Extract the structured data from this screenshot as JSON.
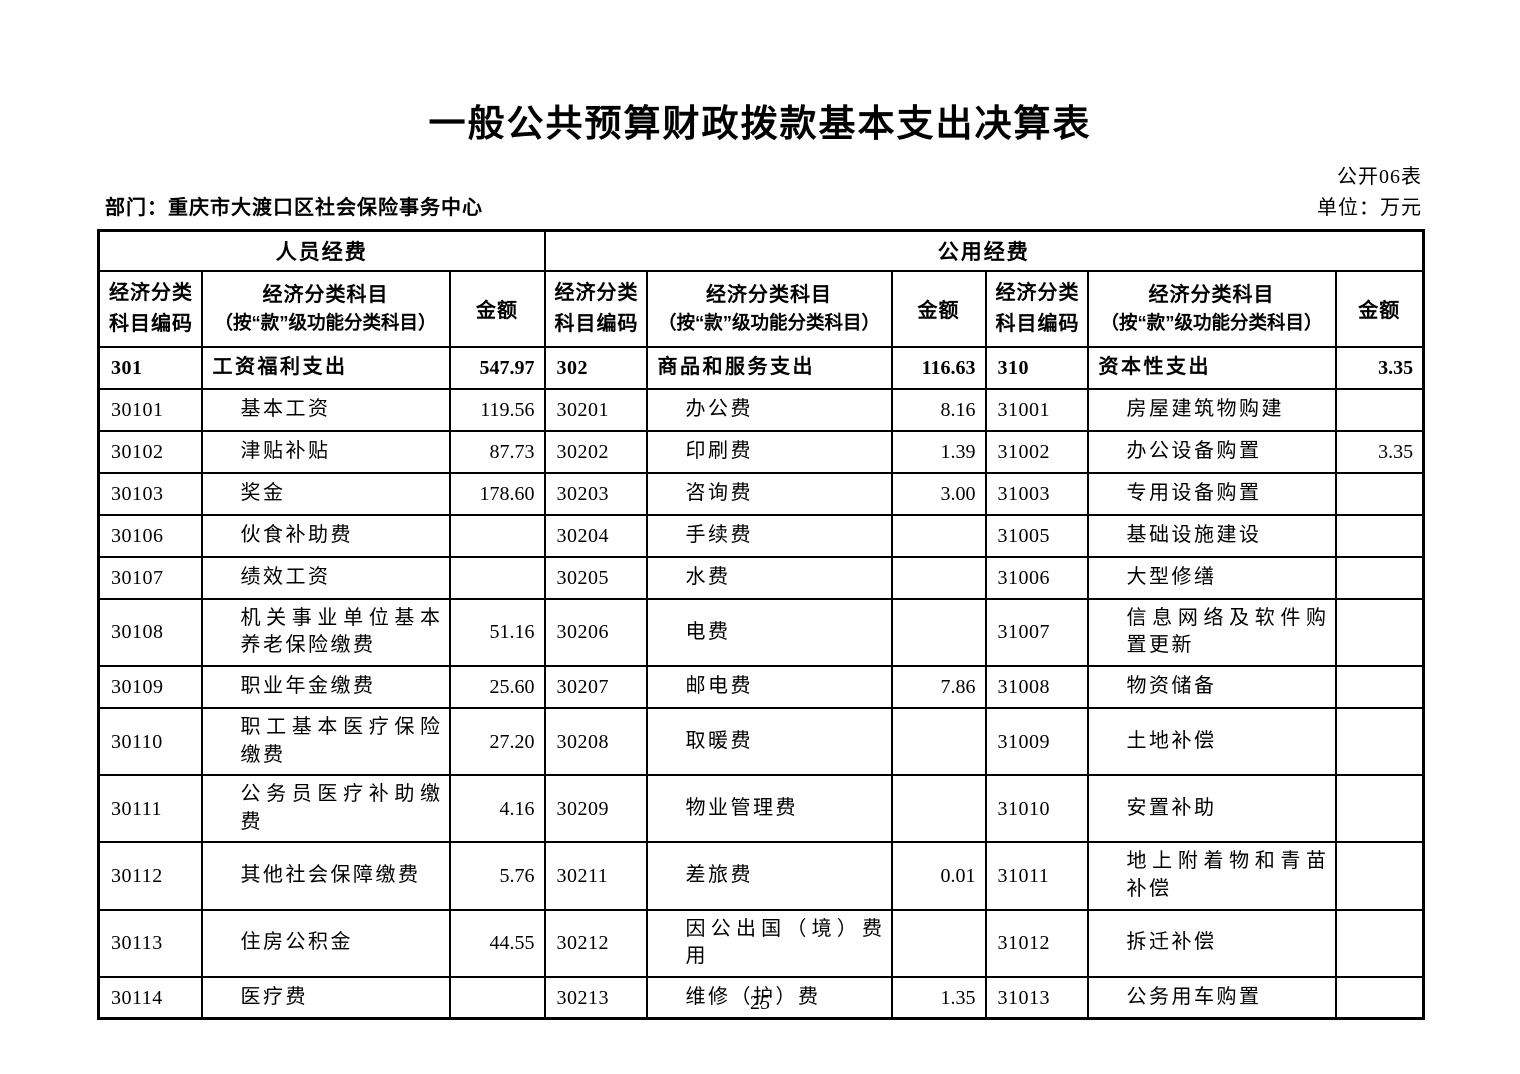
{
  "page": {
    "title": "一般公共预算财政拨款基本支出决算表",
    "table_code": "公开06表",
    "department_label": "部门：重庆市大渡口区社会保险事务中心",
    "unit_label": "单位：万元",
    "page_number": "25"
  },
  "table": {
    "group_headers": [
      "人员经费",
      "公用经费"
    ],
    "column_headers": {
      "code": "经济分类科目编码",
      "subject_line1": "经济分类科目",
      "subject_line2": "（按“款”级功能分类科目）",
      "amount": "金额"
    },
    "rows": [
      {
        "bold": true,
        "cells": [
          "301",
          "工资福利支出",
          "547.97",
          "302",
          "商品和服务支出",
          "116.63",
          "310",
          "资本性支出",
          "3.35"
        ]
      },
      {
        "bold": false,
        "cells": [
          "30101",
          "基本工资",
          "119.56",
          "30201",
          "办公费",
          "8.16",
          "31001",
          "房屋建筑物购建",
          ""
        ]
      },
      {
        "bold": false,
        "cells": [
          "30102",
          "津贴补贴",
          "87.73",
          "30202",
          "印刷费",
          "1.39",
          "31002",
          "办公设备购置",
          "3.35"
        ]
      },
      {
        "bold": false,
        "cells": [
          "30103",
          "奖金",
          "178.60",
          "30203",
          "咨询费",
          "3.00",
          "31003",
          "专用设备购置",
          ""
        ]
      },
      {
        "bold": false,
        "cells": [
          "30106",
          "伙食补助费",
          "",
          "30204",
          "手续费",
          "",
          "31005",
          "基础设施建设",
          ""
        ]
      },
      {
        "bold": false,
        "cells": [
          "30107",
          "绩效工资",
          "",
          "30205",
          "水费",
          "",
          "31006",
          "大型修缮",
          ""
        ]
      },
      {
        "bold": false,
        "cells": [
          "30108",
          "机关事业单位基本养老保险缴费",
          "51.16",
          "30206",
          "电费",
          "",
          "31007",
          "信息网络及软件购置更新",
          ""
        ]
      },
      {
        "bold": false,
        "cells": [
          "30109",
          "职业年金缴费",
          "25.60",
          "30207",
          "邮电费",
          "7.86",
          "31008",
          "物资储备",
          ""
        ]
      },
      {
        "bold": false,
        "cells": [
          "30110",
          "职工基本医疗保险缴费",
          "27.20",
          "30208",
          "取暖费",
          "",
          "31009",
          "土地补偿",
          ""
        ]
      },
      {
        "bold": false,
        "cells": [
          "30111",
          "公务员医疗补助缴费",
          "4.16",
          "30209",
          "物业管理费",
          "",
          "31010",
          "安置补助",
          ""
        ]
      },
      {
        "bold": false,
        "cells": [
          "30112",
          "其他社会保障缴费",
          "5.76",
          "30211",
          "差旅费",
          "0.01",
          "31011",
          "地上附着物和青苗补偿",
          ""
        ]
      },
      {
        "bold": false,
        "cells": [
          "30113",
          "住房公积金",
          "44.55",
          "30212",
          "因公出国（境）费用",
          "",
          "31012",
          "拆迁补偿",
          ""
        ]
      },
      {
        "bold": false,
        "cells": [
          "30114",
          "医疗费",
          "",
          "30213",
          "维修（护）费",
          "1.35",
          "31013",
          "公务用车购置",
          ""
        ]
      }
    ]
  }
}
